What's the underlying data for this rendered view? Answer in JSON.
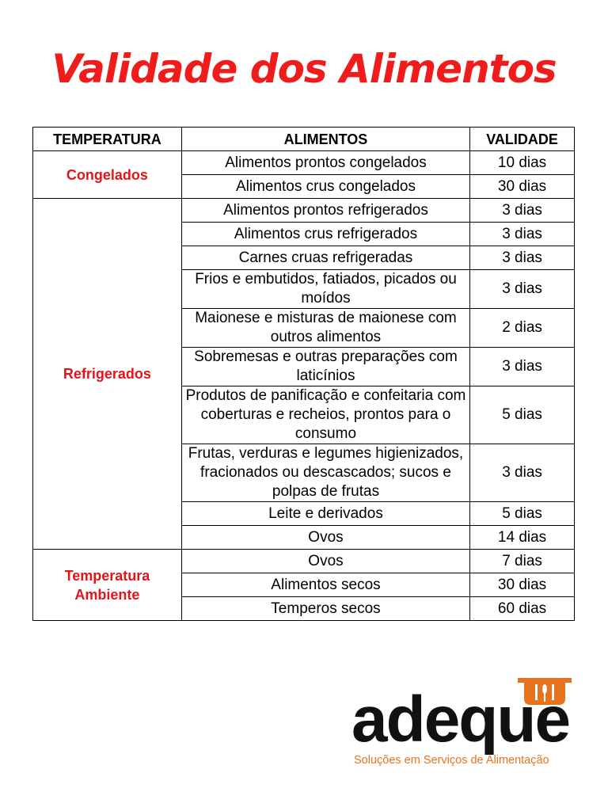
{
  "title": "Validade dos Alimentos",
  "table": {
    "headers": [
      "TEMPERATURA",
      "ALIMENTOS",
      "VALIDADE"
    ],
    "groups": [
      {
        "category": "Congelados",
        "rows": [
          [
            "Alimentos prontos congelados",
            "10 dias"
          ],
          [
            "Alimentos crus congelados",
            "30 dias"
          ]
        ]
      },
      {
        "category": "Refrigerados",
        "rows": [
          [
            "Alimentos prontos refrigerados",
            "3 dias"
          ],
          [
            "Alimentos crus refrigerados",
            "3 dias"
          ],
          [
            "Carnes cruas refrigeradas",
            "3 dias"
          ],
          [
            "Frios e embutidos, fatiados, picados ou moídos",
            "3 dias"
          ],
          [
            "Maionese e misturas de maionese com outros alimentos",
            "2 dias"
          ],
          [
            "Sobremesas e outras preparações com laticínios",
            "3 dias"
          ],
          [
            "Produtos de panificação e confeitaria com coberturas e recheios, prontos para o consumo",
            "5 dias"
          ],
          [
            "Frutas, verduras e legumes higienizados, fracionados ou descascados; sucos e polpas de frutas",
            "3 dias"
          ],
          [
            "Leite e derivados",
            "5 dias"
          ],
          [
            "Ovos",
            "14 dias"
          ]
        ]
      },
      {
        "category": "Temperatura Ambiente",
        "rows": [
          [
            "Ovos",
            "7 dias"
          ],
          [
            "Alimentos secos",
            "30 dias"
          ],
          [
            "Temperos secos",
            "60 dias"
          ]
        ]
      }
    ]
  },
  "logo": {
    "name": "adeque",
    "tagline": "Soluções em Serviços de Alimentação"
  }
}
